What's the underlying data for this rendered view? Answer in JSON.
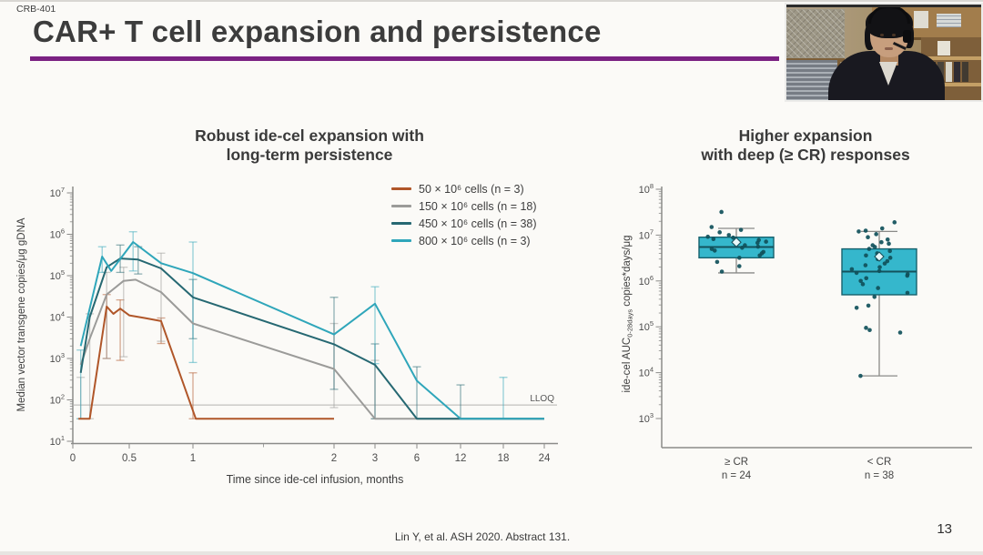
{
  "header": {
    "study_label": "CRB-401",
    "title": "CAR+ T cell expansion and persistence",
    "accent_color": "#7b2182"
  },
  "footer": {
    "citation": "Lin Y, et al. ASH 2020. Abstract 131.",
    "page_number": "13"
  },
  "chart_data": [
    {
      "type": "line",
      "title_lines": [
        "Robust ide-cel expansion with",
        "long-term persistence"
      ],
      "xlabel": "Time since ide-cel infusion, months",
      "ylabel": "Median vector transgene copies/μg gDNA",
      "y_scale": "log",
      "y_exponents": [
        1,
        2,
        3,
        4,
        5,
        6,
        7
      ],
      "x_ticks": [
        0,
        0.5,
        1,
        2,
        3,
        6,
        12,
        18,
        24
      ],
      "x_tick_labels": [
        "0",
        "0.5",
        "1",
        "2",
        "3",
        "6",
        "12",
        "18",
        "24"
      ],
      "x_minor_ticks": [
        1.5
      ],
      "lloq": {
        "label": "LLOQ",
        "value": 75
      },
      "below_lloq_plot_value": 35,
      "legend_position": "top-right",
      "series": [
        {
          "name": "50 × 10⁶ cells (n = 3)",
          "color": "#b05629",
          "points": [
            [
              0.05,
              35
            ],
            [
              0.15,
              35
            ],
            [
              0.3,
              18000
            ],
            [
              0.36,
              12000
            ],
            [
              0.42,
              16000
            ],
            [
              0.5,
              11000
            ],
            [
              0.62,
              9500
            ],
            [
              0.75,
              8000
            ],
            [
              1.02,
              35
            ],
            [
              2,
              35
            ]
          ],
          "error_bars": [
            [
              0.3,
              1000,
              35000
            ],
            [
              0.42,
              900,
              26000
            ],
            [
              0.75,
              2300,
              9500
            ],
            [
              1,
              35,
              450
            ]
          ]
        },
        {
          "name": "150 × 10⁶ cells (n = 18)",
          "color": "#9b9b99",
          "points": [
            [
              0.07,
              700
            ],
            [
              0.15,
              3000
            ],
            [
              0.3,
              35000
            ],
            [
              0.45,
              75000
            ],
            [
              0.55,
              80000
            ],
            [
              0.75,
              40000
            ],
            [
              1,
              7000
            ],
            [
              2,
              560
            ],
            [
              3,
              35
            ],
            [
              6,
              35
            ],
            [
              12,
              35
            ],
            [
              18,
              35
            ],
            [
              24,
              35
            ]
          ],
          "error_bars": [
            [
              0.07,
              35,
              350
            ],
            [
              0.15,
              35,
              12000
            ],
            [
              0.3,
              1000,
              120000
            ],
            [
              0.45,
              1100,
              160000
            ],
            [
              0.75,
              2600,
              350000
            ],
            [
              2,
              65,
              7000
            ],
            [
              3,
              35,
              900
            ]
          ]
        },
        {
          "name": "450 × 10⁶ cells (n = 38)",
          "color": "#266872",
          "points": [
            [
              0.07,
              450
            ],
            [
              0.15,
              10000
            ],
            [
              0.3,
              160000
            ],
            [
              0.42,
              260000
            ],
            [
              0.57,
              245000
            ],
            [
              0.75,
              150000
            ],
            [
              1,
              30000
            ],
            [
              2,
              2200
            ],
            [
              3,
              700
            ],
            [
              6,
              35
            ],
            [
              12,
              35
            ],
            [
              18,
              35
            ],
            [
              24,
              35
            ]
          ],
          "error_bars": [
            [
              0.42,
              120000,
              550000
            ],
            [
              0.57,
              110000,
              500000
            ],
            [
              1,
              3000,
              81000
            ],
            [
              2,
              180,
              30000
            ],
            [
              3,
              35,
              2250
            ],
            [
              6,
              35,
              630
            ],
            [
              12,
              35,
              230
            ]
          ]
        },
        {
          "name": "800 × 10⁶ cells (n = 3)",
          "color": "#2fa6ba",
          "points": [
            [
              0.07,
              2000
            ],
            [
              0.26,
              290000
            ],
            [
              0.34,
              130000
            ],
            [
              0.53,
              650000
            ],
            [
              0.75,
              200000
            ],
            [
              1,
              115000
            ],
            [
              2,
              3800
            ],
            [
              3,
              21000
            ],
            [
              6,
              290
            ],
            [
              12,
              35
            ],
            [
              18,
              35
            ],
            [
              24,
              35
            ]
          ],
          "error_bars": [
            [
              0.07,
              35,
              1600
            ],
            [
              0.26,
              120000,
              500000
            ],
            [
              0.53,
              130000,
              1150000
            ],
            [
              1,
              800,
              650000
            ],
            [
              3,
              750,
              54000
            ],
            [
              18,
              35,
              350
            ]
          ]
        }
      ]
    },
    {
      "type": "box",
      "title_lines": [
        "Higher expansion",
        "with deep (≥ CR) responses"
      ],
      "ylabel_parts": {
        "prefix": "ide-cel AUC",
        "sub": "0-28days",
        "suffix": " copies*days/μg"
      },
      "y_scale": "log",
      "y_exponents": [
        3,
        4,
        5,
        6,
        7,
        8
      ],
      "box_fill": "#35b7cc",
      "box_border": "#17616d",
      "dot_color": "#10505a",
      "whisker_color": "#8a8a88",
      "groups": [
        {
          "label": "≥ CR",
          "n_label": "n = 24",
          "whisker_low": 1500000,
          "q1": 3200000,
          "median": 5500000,
          "q3": 9000000,
          "whisker_high": 14000000,
          "mean": 7000000,
          "points": [
            32000000,
            15000000,
            13000000,
            11500000,
            10000000,
            9200000,
            8800000,
            8200000,
            7800000,
            7200000,
            6800000,
            6400000,
            6000000,
            5600000,
            5300000,
            5000000,
            4600000,
            4300000,
            4000000,
            3600000,
            3200000,
            2600000,
            2100000,
            1600000
          ]
        },
        {
          "label": "< CR",
          "n_label": "n = 38",
          "whisker_low": 8500,
          "q1": 500000,
          "median": 1600000,
          "q3": 5000000,
          "whisker_high": 12000000,
          "mean": 3400000,
          "points": [
            19000000,
            14000000,
            12500000,
            12000000,
            10500000,
            9000000,
            8000000,
            7000000,
            6500000,
            6000000,
            5500000,
            5000000,
            4500000,
            4000000,
            3600000,
            3200000,
            3000000,
            2700000,
            2400000,
            2200000,
            2000000,
            1800000,
            1650000,
            1500000,
            1400000,
            1300000,
            1150000,
            1000000,
            850000,
            700000,
            550000,
            450000,
            290000,
            260000,
            95000,
            85000,
            75000,
            8500
          ]
        }
      ]
    }
  ]
}
